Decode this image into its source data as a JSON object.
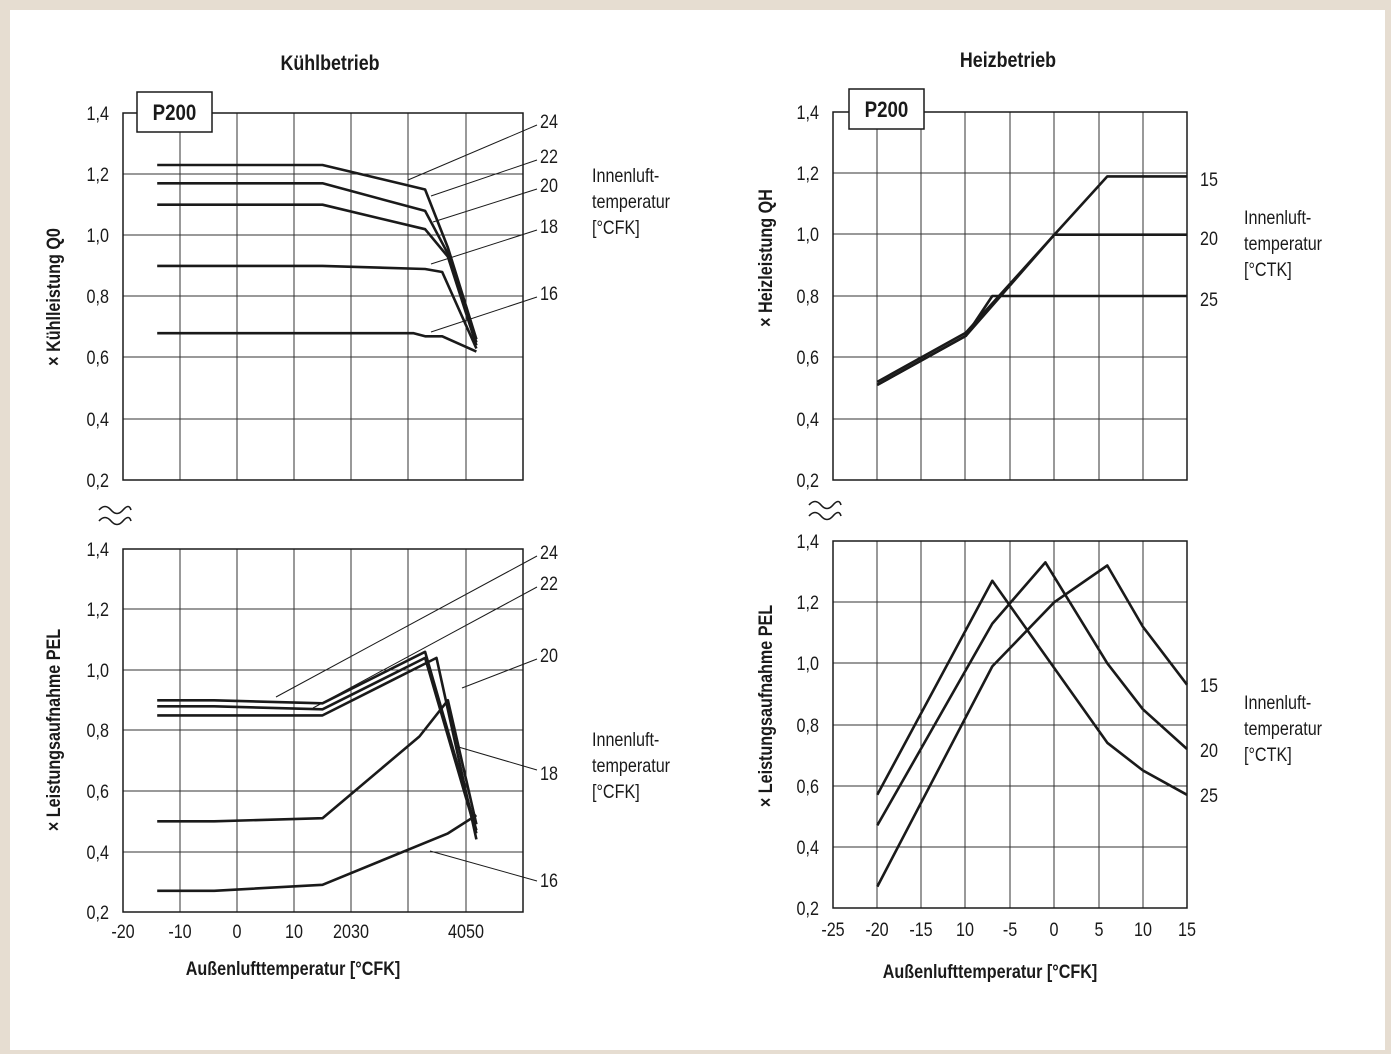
{
  "chart_data": [
    {
      "type": "line",
      "title": "Kühlbetrieb",
      "badge": "P200",
      "xlabel": "Außenlufttemperatur [°CFK]",
      "x_ticks": [
        "-20",
        "-10",
        "0",
        "10",
        "2030",
        "4050"
      ],
      "xlim": [
        -20,
        55
      ],
      "side_label": "Innenluft-\ntemperatur\n[°CFK]",
      "panels": [
        {
          "ylabel": "× Kühlleistung Q0",
          "ylim": [
            0.2,
            1.4
          ],
          "y_ticks": [
            "1,4",
            "1,2",
            "1,0",
            "0,8",
            "0,6",
            "0,4",
            "0,2"
          ],
          "series": [
            {
              "name": "24",
              "points": [
                [
                  -14,
                  1.23
                ],
                [
                  15,
                  1.23
                ],
                [
                  33,
                  1.15
                ],
                [
                  37,
                  0.96
                ],
                [
                  42,
                  0.66
                ]
              ]
            },
            {
              "name": "22",
              "points": [
                [
                  -14,
                  1.17
                ],
                [
                  15,
                  1.17
                ],
                [
                  33,
                  1.08
                ],
                [
                  37,
                  0.94
                ],
                [
                  42,
                  0.65
                ]
              ]
            },
            {
              "name": "20",
              "points": [
                [
                  -14,
                  1.1
                ],
                [
                  15,
                  1.1
                ],
                [
                  33,
                  1.02
                ],
                [
                  37,
                  0.93
                ],
                [
                  42,
                  0.64
                ]
              ]
            },
            {
              "name": "18",
              "points": [
                [
                  -14,
                  0.9
                ],
                [
                  15,
                  0.9
                ],
                [
                  33,
                  0.89
                ],
                [
                  36,
                  0.88
                ],
                [
                  42,
                  0.63
                ]
              ]
            },
            {
              "name": "16",
              "points": [
                [
                  -14,
                  0.68
                ],
                [
                  15,
                  0.68
                ],
                [
                  31,
                  0.68
                ],
                [
                  33,
                  0.67
                ],
                [
                  36,
                  0.67
                ],
                [
                  42,
                  0.62
                ]
              ]
            }
          ]
        },
        {
          "ylabel": "× Leistungsaufnahme PEL",
          "ylim": [
            0.2,
            1.4
          ],
          "y_ticks": [
            "1,4",
            "1,2",
            "1,0",
            "0,8",
            "0,6",
            "0,4",
            "0,2"
          ],
          "series": [
            {
              "name": "24",
              "points": [
                [
                  -14,
                  0.9
                ],
                [
                  -4,
                  0.9
                ],
                [
                  15,
                  0.89
                ],
                [
                  33,
                  1.06
                ],
                [
                  42,
                  0.47
                ]
              ]
            },
            {
              "name": "22",
              "points": [
                [
                  -14,
                  0.88
                ],
                [
                  -4,
                  0.88
                ],
                [
                  15,
                  0.87
                ],
                [
                  33,
                  1.04
                ],
                [
                  42,
                  0.46
                ]
              ]
            },
            {
              "name": "20",
              "points": [
                [
                  -14,
                  0.85
                ],
                [
                  -4,
                  0.85
                ],
                [
                  15,
                  0.85
                ],
                [
                  35,
                  1.04
                ],
                [
                  42,
                  0.44
                ]
              ]
            },
            {
              "name": "18",
              "points": [
                [
                  -14,
                  0.5
                ],
                [
                  -4,
                  0.5
                ],
                [
                  15,
                  0.51
                ],
                [
                  32,
                  0.78
                ],
                [
                  37,
                  0.9
                ],
                [
                  42,
                  0.49
                ]
              ]
            },
            {
              "name": "16",
              "points": [
                [
                  -14,
                  0.27
                ],
                [
                  -4,
                  0.27
                ],
                [
                  15,
                  0.29
                ],
                [
                  37,
                  0.46
                ],
                [
                  42,
                  0.52
                ]
              ]
            }
          ]
        }
      ]
    },
    {
      "type": "line",
      "title": "Heizbetrieb",
      "badge": "P200",
      "xlabel": "Außenlufttemperatur [°CFK]",
      "x_ticks": [
        "-25",
        "-20",
        "-15",
        "10",
        "-5",
        "0",
        "5",
        "10",
        "15"
      ],
      "xlim": [
        -25,
        15
      ],
      "side_label": "Innenluft-\ntemperatur\n[°CTK]",
      "panels": [
        {
          "ylabel": "× Heizleistung QH",
          "ylim": [
            0.2,
            1.4
          ],
          "y_ticks": [
            "1,4",
            "1,2",
            "1,0",
            "0,8",
            "0,6",
            "0,4",
            "0,2"
          ],
          "series": [
            {
              "name": "15",
              "points": [
                [
                  -20,
                  0.52
                ],
                [
                  -10,
                  0.68
                ],
                [
                  0,
                  1.0
                ],
                [
                  6,
                  1.19
                ],
                [
                  15,
                  1.19
                ]
              ]
            },
            {
              "name": "20",
              "points": [
                [
                  -20,
                  0.51
                ],
                [
                  -10,
                  0.67
                ],
                [
                  0,
                  1.0
                ],
                [
                  15,
                  1.0
                ]
              ]
            },
            {
              "name": "25",
              "points": [
                [
                  -20,
                  0.51
                ],
                [
                  -10,
                  0.67
                ],
                [
                  -7,
                  0.8
                ],
                [
                  15,
                  0.8
                ]
              ]
            }
          ]
        },
        {
          "ylabel": "× Leistungsaufnahme PEL",
          "ylim": [
            0.2,
            1.4
          ],
          "y_ticks": [
            "1,4",
            "1,2",
            "1,0",
            "0,8",
            "0,6",
            "0,4",
            "0,2"
          ],
          "series": [
            {
              "name": "15",
              "points": [
                [
                  -20,
                  0.27
                ],
                [
                  -7,
                  0.99
                ],
                [
                  0,
                  1.2
                ],
                [
                  6,
                  1.32
                ],
                [
                  10,
                  1.12
                ],
                [
                  15,
                  0.93
                ]
              ]
            },
            {
              "name": "20",
              "points": [
                [
                  -20,
                  0.47
                ],
                [
                  -7,
                  1.13
                ],
                [
                  -1,
                  1.33
                ],
                [
                  6,
                  1.0
                ],
                [
                  10,
                  0.85
                ],
                [
                  15,
                  0.72
                ]
              ]
            },
            {
              "name": "25",
              "points": [
                [
                  -20,
                  0.57
                ],
                [
                  -7,
                  1.27
                ],
                [
                  6,
                  0.74
                ],
                [
                  10,
                  0.65
                ],
                [
                  15,
                  0.57
                ]
              ]
            }
          ]
        }
      ]
    }
  ]
}
